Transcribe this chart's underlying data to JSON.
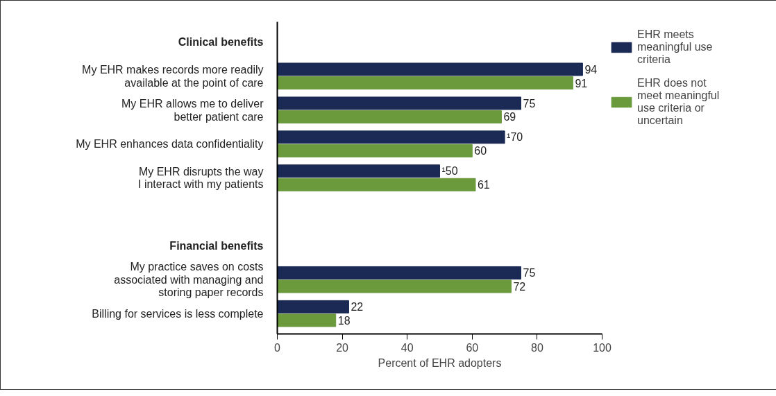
{
  "chart_data": {
    "type": "bar",
    "orientation": "horizontal",
    "xlabel": "Percent of EHR adopters",
    "categories": [
      "Clinical benefits",
      "My EHR makes records more readily\navailable at the point of care",
      "My EHR allows me to deliver\nbetter patient care",
      "My EHR enhances data confidentiality",
      "My EHR disrupts the way\nI interact with my patients",
      null,
      "Financial benefits",
      "My practice saves on costs\nassociated with managing and\nstoring paper records",
      "Billing for services is less complete"
    ],
    "series": [
      {
        "name": "EHR meets meaningful use criteria",
        "color": "#1b2a55",
        "values": [
          null,
          94,
          75,
          70,
          50,
          null,
          null,
          75,
          22
        ],
        "value_labels": [
          null,
          "94",
          "75",
          "¹70",
          "¹50",
          null,
          null,
          "75",
          "22"
        ]
      },
      {
        "name": "EHR does not meet meaningful use criteria or uncertain",
        "color": "#6a9a3c",
        "values": [
          null,
          91,
          69,
          60,
          61,
          null,
          null,
          72,
          18
        ],
        "value_labels": [
          null,
          "91",
          "69",
          "60",
          "61",
          null,
          null,
          "72",
          "18"
        ]
      }
    ],
    "xlim": [
      0,
      100
    ],
    "xticks": [
      0,
      20,
      40,
      60,
      80,
      100
    ],
    "grid": false,
    "legend": "top right"
  }
}
